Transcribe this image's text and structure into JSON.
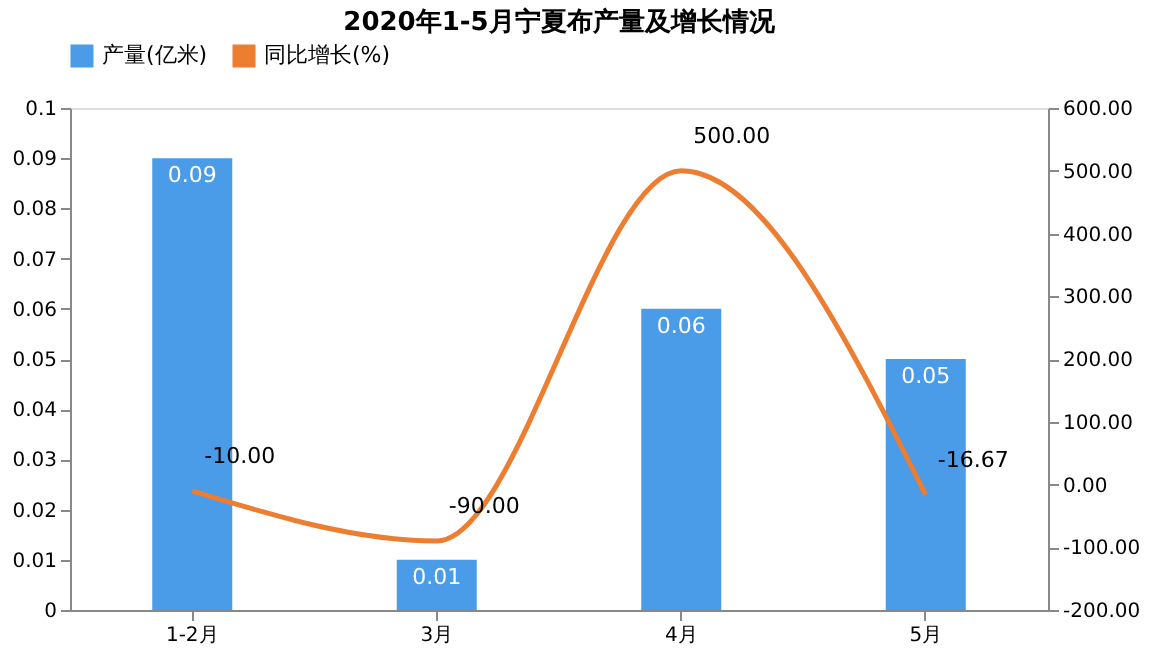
{
  "chart_data": {
    "type": "bar",
    "title": "2020年1-5月宁夏布产量及增长情况",
    "categories": [
      "1-2月",
      "3月",
      "4月",
      "5月"
    ],
    "series": [
      {
        "name": "产量(亿米)",
        "color": "#4a9be8",
        "values": [
          0.09,
          0.01,
          0.06,
          0.05
        ],
        "value_labels": [
          "0.09",
          "0.01",
          "0.06",
          "0.05"
        ]
      },
      {
        "name": "同比增长(%)",
        "type": "line",
        "axis": "y2",
        "color": "#ed7d31",
        "values": [
          -10,
          -90,
          500,
          -16.67
        ],
        "value_labels": [
          "-10.00",
          "-90.00",
          "500.00",
          "-16.67"
        ]
      }
    ],
    "ylim": [
      0,
      0.1
    ],
    "yticks": [
      0,
      0.01,
      0.02,
      0.03,
      0.04,
      0.05,
      0.06,
      0.07,
      0.08,
      0.09,
      0.1
    ],
    "y2lim": [
      -200,
      600
    ],
    "y2ticks": [
      {
        "value": -200,
        "label": "-200.00"
      },
      {
        "value": -100,
        "label": "-100.00"
      },
      {
        "value": 0,
        "label": "0.00"
      },
      {
        "value": 100,
        "label": "100.00"
      },
      {
        "value": 200,
        "label": "200.00"
      },
      {
        "value": 300,
        "label": "300.00"
      },
      {
        "value": 400,
        "label": "400.00"
      },
      {
        "value": 500,
        "label": "500.00"
      },
      {
        "value": 600,
        "label": "600.00"
      }
    ],
    "grid": false,
    "legend": "top",
    "marker": "none",
    "line_style": "solid"
  }
}
